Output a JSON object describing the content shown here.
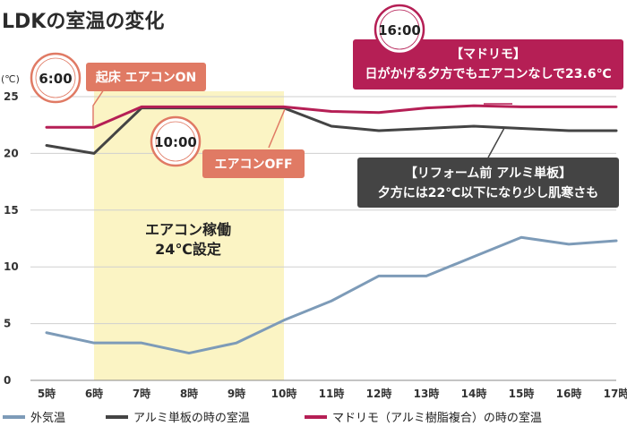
{
  "colors": {
    "outdoor": "#7d9bb8",
    "aluminum": "#444444",
    "madorimo": "#b51f55",
    "band": "#fbf4c4",
    "salmon": "#e07a64",
    "crimson": "#b51f55",
    "dark": "#444444"
  },
  "chart_data": {
    "type": "line",
    "title": "LDKの室温の変化",
    "ylabel": "(℃)",
    "ylim": [
      0,
      25
    ],
    "yticks": [
      "0",
      "5",
      "10",
      "15",
      "20",
      "25"
    ],
    "categories": [
      "5時",
      "6時",
      "7時",
      "8時",
      "9時",
      "10時",
      "11時",
      "12時",
      "13時",
      "14時",
      "15時",
      "16時",
      "17時"
    ],
    "series": [
      {
        "name": "外気温",
        "values": [
          4.2,
          3.3,
          3.3,
          2.4,
          3.3,
          5.3,
          7.0,
          9.2,
          9.2,
          10.9,
          12.6,
          12.0,
          12.3
        ]
      },
      {
        "name": "アルミ単板の時の室温",
        "values": [
          20.7,
          20.0,
          24.0,
          24.0,
          24.0,
          24.0,
          22.4,
          22.0,
          22.2,
          22.4,
          22.2,
          22.0,
          22.0
        ]
      },
      {
        "name": "マドリモ（アルミ樹脂複合）の時の室温",
        "values": [
          22.3,
          22.3,
          24.1,
          24.1,
          24.1,
          24.1,
          23.7,
          23.6,
          24.0,
          24.2,
          24.1,
          24.1,
          24.1
        ]
      }
    ],
    "band": {
      "from": "6時",
      "to": "10時",
      "line1": "エアコン稼働",
      "line2": "24℃設定"
    },
    "annotations": {
      "wake": "起床 エアコンON",
      "off": "エアコンOFF",
      "madorimo_title": "【マドリモ】",
      "madorimo_text": "日がかげる夕方でもエアコンなしで23.6℃",
      "reform_title": "【リフォーム前 アルミ単板】",
      "reform_text": "夕方には22℃以下になり少し肌寒さも"
    },
    "clocks": [
      "6:00",
      "10:00",
      "16:00"
    ]
  }
}
